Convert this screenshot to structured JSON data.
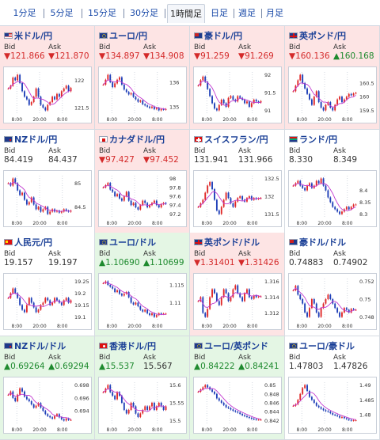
{
  "tabs": [
    {
      "label": "1分足",
      "active": false
    },
    {
      "label": "5分足",
      "active": false
    },
    {
      "label": "15分足",
      "active": false
    },
    {
      "label": "30分足",
      "active": false
    },
    {
      "label": "1時間足",
      "active": true
    },
    {
      "label": "日足",
      "active": false
    },
    {
      "label": "週足",
      "active": false
    },
    {
      "label": "月足",
      "active": false
    }
  ],
  "bid_label": "Bid",
  "ask_label": "Ask",
  "x_ticks": [
    "8:00",
    "20:00",
    "8:00"
  ],
  "colors": {
    "candle_up": "#e02828",
    "candle_down": "#1f3fb8",
    "moving_average": "#c23ad0",
    "title": "#1a3f96",
    "price_down": "#d42a2a",
    "price_up": "#1e8a2e",
    "bg_down": "#fde4e4",
    "bg_up": "#e4f6e4"
  },
  "pairs": [
    {
      "name": "米ドル/円",
      "flag": "us-flag-icon",
      "bid": "▼121.866",
      "ask": "▼121.870",
      "trend": "down",
      "chart_data": {
        "type": "candlestick",
        "y_ticks": [
          "122",
          "121.5"
        ],
        "close": [
          121.85,
          121.9,
          122.05,
          122.0,
          122.1,
          121.95,
          121.8,
          121.7,
          121.65,
          121.55,
          121.6,
          121.7,
          121.85,
          121.7,
          121.55,
          121.5,
          121.45,
          121.55,
          121.6,
          121.7,
          121.65,
          121.75,
          121.7,
          121.8,
          121.85,
          121.9,
          121.8,
          121.86
        ]
      }
    },
    {
      "name": "ユーロ/円",
      "flag": "eu-flag-icon",
      "bid": "▼134.897",
      "ask": "▼134.908",
      "trend": "down",
      "chart_data": {
        "type": "candlestick",
        "y_ticks": [
          "136",
          "135"
        ],
        "close": [
          135.9,
          136.1,
          136.3,
          136.0,
          135.8,
          135.95,
          136.1,
          136.2,
          135.9,
          135.7,
          135.6,
          135.5,
          135.55,
          135.4,
          135.3,
          135.2,
          135.25,
          135.1,
          135.05,
          135.0,
          134.95,
          135.0,
          134.9,
          134.95,
          134.85,
          134.9,
          134.88,
          134.9
        ]
      }
    },
    {
      "name": "豪ドル/円",
      "flag": "au-flag-icon",
      "bid": "▼91.259",
      "ask": "▼91.269",
      "trend": "down",
      "chart_data": {
        "type": "candlestick",
        "y_ticks": [
          "92",
          "91.5",
          "91"
        ],
        "close": [
          91.7,
          91.85,
          91.95,
          91.8,
          91.6,
          91.4,
          91.2,
          91.05,
          91.0,
          91.15,
          91.3,
          91.2,
          91.1,
          91.35,
          91.4,
          91.3,
          91.25,
          91.4,
          91.35,
          91.3,
          91.2,
          91.25,
          91.1,
          91.2,
          91.3,
          91.25,
          91.22,
          91.26
        ]
      }
    },
    {
      "name": "英ポンド/円",
      "flag": "uk-flag-icon",
      "bid": "▼160.136",
      "ask": "▲160.168",
      "trend": "down",
      "chart_data": {
        "type": "candlestick",
        "y_ticks": [
          "160.5",
          "160",
          "159.5"
        ],
        "close": [
          160.2,
          160.4,
          160.6,
          160.8,
          160.5,
          160.3,
          160.1,
          159.9,
          159.7,
          160.0,
          160.2,
          159.8,
          159.6,
          159.5,
          159.7,
          159.8,
          159.6,
          159.5,
          159.7,
          159.9,
          160.0,
          159.8,
          159.9,
          160.0,
          160.1,
          160.05,
          160.12,
          160.14
        ]
      }
    },
    {
      "name": "NZドル/円",
      "flag": "nz-flag-icon",
      "bid": "84.419",
      "ask": "84.437",
      "trend": "flat",
      "chart_data": {
        "type": "candlestick",
        "y_ticks": [
          "85",
          "84.5"
        ],
        "close": [
          85.0,
          84.95,
          85.1,
          85.0,
          84.85,
          84.75,
          84.8,
          84.65,
          84.55,
          84.6,
          84.7,
          84.55,
          84.45,
          84.5,
          84.4,
          84.45,
          84.5,
          84.35,
          84.4,
          84.45,
          84.4,
          84.42,
          84.38,
          84.4,
          84.45,
          84.42,
          84.4,
          84.42
        ]
      }
    },
    {
      "name": "カナダドル/円",
      "flag": "ca-flag-icon",
      "bid": "▼97.427",
      "ask": "▼97.452",
      "trend": "down",
      "chart_data": {
        "type": "candlestick",
        "y_ticks": [
          "98",
          "97.8",
          "97.6",
          "97.4",
          "97.2"
        ],
        "close": [
          97.8,
          97.85,
          97.9,
          97.75,
          97.7,
          97.6,
          97.65,
          97.55,
          97.5,
          97.6,
          97.7,
          97.5,
          97.4,
          97.45,
          97.35,
          97.3,
          97.4,
          97.5,
          97.45,
          97.35,
          97.4,
          97.45,
          97.5,
          97.4,
          97.35,
          97.42,
          97.45,
          97.43
        ]
      }
    },
    {
      "name": "スイスフラン/円",
      "flag": "ch-flag-icon",
      "bid": "131.941",
      "ask": "131.966",
      "trend": "flat",
      "chart_data": {
        "type": "candlestick",
        "y_ticks": [
          "132.5",
          "132",
          "131.5"
        ],
        "close": [
          131.7,
          131.8,
          131.9,
          132.1,
          132.3,
          132.4,
          132.2,
          131.9,
          131.6,
          131.5,
          131.7,
          131.9,
          132.1,
          131.95,
          131.8,
          131.7,
          131.85,
          131.95,
          132.0,
          131.9,
          131.85,
          131.95,
          132.0,
          131.9,
          131.95,
          131.92,
          131.94,
          131.95
        ]
      }
    },
    {
      "name": "ランド/円",
      "flag": "za-flag-icon",
      "bid": "8.330",
      "ask": "8.349",
      "trend": "flat",
      "chart_data": {
        "type": "candlestick",
        "y_ticks": [
          "8.4",
          "8.35",
          "8.3"
        ],
        "close": [
          8.42,
          8.43,
          8.44,
          8.42,
          8.41,
          8.4,
          8.42,
          8.43,
          8.41,
          8.42,
          8.44,
          8.43,
          8.45,
          8.42,
          8.4,
          8.37,
          8.35,
          8.33,
          8.32,
          8.31,
          8.3,
          8.31,
          8.32,
          8.33,
          8.32,
          8.33,
          8.34,
          8.34
        ]
      }
    },
    {
      "name": "人民元/円",
      "flag": "cn-flag-icon",
      "bid": "19.157",
      "ask": "19.197",
      "trend": "flat",
      "chart_data": {
        "type": "candlestick",
        "y_ticks": [
          "19.25",
          "19.2",
          "19.15",
          "19.1"
        ],
        "close": [
          19.18,
          19.2,
          19.22,
          19.2,
          19.18,
          19.15,
          19.13,
          19.12,
          19.15,
          19.18,
          19.16,
          19.14,
          19.12,
          19.13,
          19.15,
          19.16,
          19.18,
          19.17,
          19.15,
          19.16,
          19.18,
          19.17,
          19.16,
          19.15,
          19.17,
          19.18,
          19.16,
          19.17
        ]
      }
    },
    {
      "name": "ユーロ/ドル",
      "flag": "eu-flag-icon",
      "bid": "▲1.10690",
      "ask": "▲1.10699",
      "trend": "up",
      "chart_data": {
        "type": "candlestick",
        "y_ticks": [
          "1.115",
          "1.11"
        ],
        "close": [
          1.1155,
          1.116,
          1.115,
          1.1145,
          1.114,
          1.113,
          1.1135,
          1.1125,
          1.112,
          1.1125,
          1.113,
          1.1115,
          1.11,
          1.1095,
          1.11,
          1.109,
          1.108,
          1.1075,
          1.108,
          1.107,
          1.1065,
          1.107,
          1.106,
          1.1065,
          1.107,
          1.1068,
          1.1069,
          1.1069
        ]
      }
    },
    {
      "name": "英ポンド/ドル",
      "flag": "uk-flag-icon",
      "bid": "▼1.31401",
      "ask": "▼1.31426",
      "trend": "down",
      "chart_data": {
        "type": "candlestick",
        "y_ticks": [
          "1.316",
          "1.314",
          "1.312"
        ],
        "close": [
          1.3135,
          1.314,
          1.312,
          1.3115,
          1.3125,
          1.314,
          1.315,
          1.3145,
          1.3135,
          1.313,
          1.314,
          1.315,
          1.3145,
          1.3135,
          1.314,
          1.315,
          1.3155,
          1.3145,
          1.314,
          1.3135,
          1.3145,
          1.315,
          1.314,
          1.3138,
          1.3142,
          1.314,
          1.3141,
          1.3141
        ]
      }
    },
    {
      "name": "豪ドル/ドル",
      "flag": "au-flag-icon",
      "bid": "0.74883",
      "ask": "0.74902",
      "trend": "flat",
      "chart_data": {
        "type": "candlestick",
        "y_ticks": [
          "0.752",
          "0.75",
          "0.748"
        ],
        "close": [
          0.751,
          0.7515,
          0.7505,
          0.75,
          0.7495,
          0.7485,
          0.748,
          0.749,
          0.75,
          0.7495,
          0.7485,
          0.748,
          0.749,
          0.7495,
          0.75,
          0.7505,
          0.75,
          0.7495,
          0.749,
          0.7485,
          0.748,
          0.7485,
          0.749,
          0.7488,
          0.7485,
          0.7489,
          0.7488,
          0.7488
        ]
      }
    },
    {
      "name": "NZドル/ドル",
      "flag": "nz-flag-icon",
      "bid": "▲0.69264",
      "ask": "▲0.69294",
      "trend": "up",
      "chart_data": {
        "type": "candlestick",
        "y_ticks": [
          "0.698",
          "0.696",
          "0.694"
        ],
        "close": [
          0.6965,
          0.697,
          0.696,
          0.6955,
          0.6965,
          0.6975,
          0.697,
          0.6962,
          0.6958,
          0.6955,
          0.695,
          0.6945,
          0.6948,
          0.6952,
          0.6945,
          0.694,
          0.6935,
          0.6932,
          0.693,
          0.6928,
          0.6932,
          0.6935,
          0.693,
          0.6927,
          0.6925,
          0.6928,
          0.6926,
          0.6926
        ]
      }
    },
    {
      "name": "香港ドル/円",
      "flag": "hk-flag-icon",
      "bid": "▲15.537",
      "ask": "15.567",
      "trend": "up",
      "chart_data": {
        "type": "candlestick",
        "y_ticks": [
          "15.6",
          "15.55",
          "15.5"
        ],
        "close": [
          15.58,
          15.59,
          15.6,
          15.58,
          15.57,
          15.56,
          15.58,
          15.57,
          15.55,
          15.53,
          15.52,
          15.53,
          15.55,
          15.54,
          15.52,
          15.51,
          15.52,
          15.53,
          15.54,
          15.53,
          15.54,
          15.55,
          15.53,
          15.54,
          15.55,
          15.54,
          15.53,
          15.54
        ]
      }
    },
    {
      "name": "ユーロ/英ポンド",
      "flag": "eu-flag-icon",
      "bid": "▲0.84222",
      "ask": "▲0.84241",
      "trend": "up",
      "chart_data": {
        "type": "candlestick",
        "y_ticks": [
          "0.85",
          "0.848",
          "0.846",
          "0.844",
          "0.842"
        ],
        "close": [
          0.8485,
          0.849,
          0.8495,
          0.85,
          0.8495,
          0.849,
          0.8485,
          0.848,
          0.847,
          0.8465,
          0.846,
          0.8455,
          0.845,
          0.8448,
          0.8445,
          0.8442,
          0.844,
          0.8438,
          0.8435,
          0.8432,
          0.843,
          0.8428,
          0.8426,
          0.8424,
          0.8423,
          0.8422,
          0.8422,
          0.8422
        ]
      }
    },
    {
      "name": "ユーロ/豪ドル",
      "flag": "eu-flag-icon",
      "bid": "1.47803",
      "ask": "1.47826",
      "trend": "flat",
      "chart_data": {
        "type": "candlestick",
        "y_ticks": [
          "1.49",
          "1.485",
          "1.48"
        ],
        "close": [
          1.483,
          1.4835,
          1.485,
          1.487,
          1.489,
          1.49,
          1.488,
          1.486,
          1.485,
          1.484,
          1.483,
          1.4825,
          1.482,
          1.4815,
          1.4812,
          1.481,
          1.4805,
          1.48,
          1.4798,
          1.4795,
          1.479,
          1.4792,
          1.4788,
          1.4785,
          1.4782,
          1.478,
          1.4781,
          1.4781
        ]
      }
    }
  ]
}
